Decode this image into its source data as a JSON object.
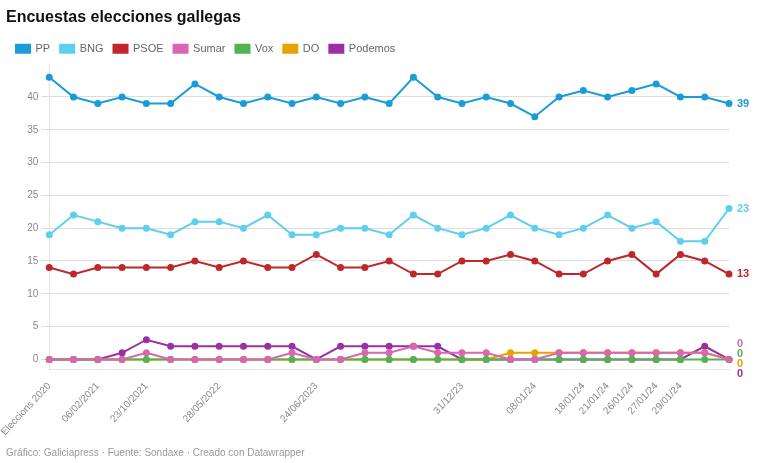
{
  "chart_data": {
    "type": "line",
    "title": "Encuestas elecciones gallegas",
    "footer": "Gráfico: Galiciapress · Fuente: Sondaxe · Creado con Datawrapper",
    "categories": [
      "Eleccions 2020",
      null,
      "06/02/2021",
      null,
      "23/10/2021",
      null,
      null,
      "28/05/2022",
      null,
      null,
      null,
      "24/06/2023",
      null,
      null,
      null,
      null,
      null,
      "31/12/23",
      null,
      null,
      "08/01/24",
      null,
      "18/01/24",
      "21/01/24",
      "26/01/24",
      "27/01/24",
      "29/01/24",
      null,
      null
    ],
    "series": [
      {
        "name": "PP",
        "color": "#1a9cd8",
        "values": [
          43,
          40,
          39,
          40,
          39,
          39,
          42,
          40,
          39,
          40,
          39,
          40,
          39,
          40,
          39,
          43,
          40,
          39,
          40,
          39,
          37,
          40,
          41,
          40,
          41,
          42,
          40,
          40,
          39
        ]
      },
      {
        "name": "BNG",
        "color": "#5ecfed",
        "values": [
          19,
          22,
          21,
          20,
          20,
          19,
          21,
          21,
          20,
          22,
          19,
          19,
          20,
          20,
          19,
          22,
          20,
          19,
          20,
          22,
          20,
          19,
          20,
          22,
          20,
          21,
          18,
          18,
          23
        ]
      },
      {
        "name": "PSOE",
        "color": "#c0272d",
        "values": [
          14,
          13,
          14,
          14,
          14,
          14,
          15,
          14,
          15,
          14,
          14,
          16,
          14,
          14,
          15,
          13,
          13,
          15,
          15,
          16,
          15,
          13,
          13,
          15,
          16,
          13,
          16,
          15,
          13
        ]
      },
      {
        "name": "Sumar",
        "color": "#d966b0",
        "values": [
          0,
          0,
          0,
          0,
          1,
          0,
          0,
          0,
          0,
          0,
          1,
          0,
          0,
          1,
          1,
          2,
          1,
          1,
          1,
          0,
          0,
          1,
          1,
          1,
          1,
          1,
          1,
          1,
          0
        ]
      },
      {
        "name": "Vox",
        "color": "#52b352",
        "values": [
          0,
          0,
          0,
          0,
          0,
          0,
          0,
          0,
          0,
          0,
          0,
          0,
          0,
          0,
          0,
          0,
          0,
          0,
          0,
          0,
          0,
          0,
          0,
          0,
          0,
          0,
          0,
          0,
          0
        ]
      },
      {
        "name": "DO",
        "color": "#e8a300",
        "values": [
          0,
          0,
          0,
          0,
          0,
          0,
          0,
          0,
          0,
          0,
          0,
          0,
          0,
          0,
          0,
          0,
          0,
          0,
          0,
          1,
          1,
          1,
          1,
          1,
          1,
          1,
          1,
          1,
          0
        ]
      },
      {
        "name": "Podemos",
        "color": "#9b2fa5",
        "values": [
          0,
          0,
          0,
          1,
          3,
          2,
          2,
          2,
          2,
          2,
          2,
          0,
          2,
          2,
          2,
          2,
          2,
          0,
          0,
          0,
          0,
          0,
          0,
          0,
          0,
          0,
          0,
          2,
          0
        ]
      }
    ],
    "ylim": [
      -1.5,
      45
    ],
    "yticks": [
      0,
      5,
      10,
      15,
      20,
      25,
      30,
      35,
      40
    ],
    "grid": true,
    "legend": "top",
    "marker": "o",
    "annotations": [
      {
        "text": "39",
        "series": "PP"
      },
      {
        "text": "23",
        "series": "BNG"
      },
      {
        "text": "13",
        "series": "PSOE"
      },
      {
        "text": "0",
        "series": "Sumar"
      },
      {
        "text": "0",
        "series": "Vox"
      },
      {
        "text": "0",
        "series": "DO"
      },
      {
        "text": "0",
        "series": "Podemos"
      }
    ]
  }
}
